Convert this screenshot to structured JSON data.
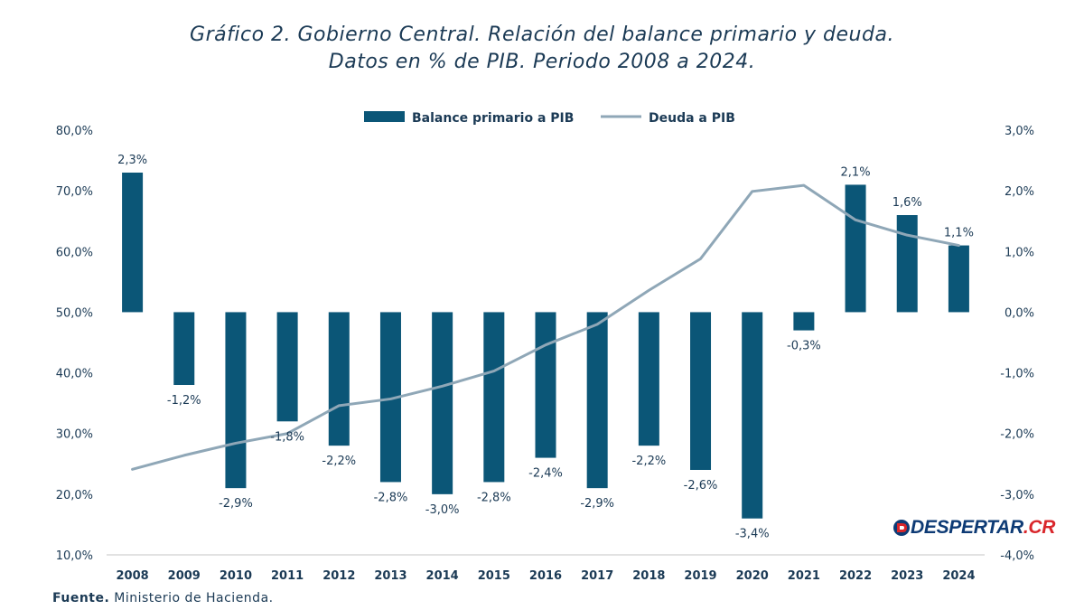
{
  "title_line1": "Gráfico 2. Gobierno Central. Relación del balance primario y deuda.",
  "title_line2": "Datos en % de PIB. Periodo 2008 a 2024.",
  "source_label": "Fuente.",
  "source_text": "Ministerio de Hacienda.",
  "logo": {
    "main": "DESPERTAR",
    "suffix": ".CR",
    "icon": "despertar-logo-icon"
  },
  "colors": {
    "bar": "#0b5677",
    "line": "#8fa7b7",
    "text": "#1b3a55",
    "axis_line": "#d9d9d9"
  },
  "chart_data": {
    "type": "bar",
    "categories": [
      "2008",
      "2009",
      "2010",
      "2011",
      "2012",
      "2013",
      "2014",
      "2015",
      "2016",
      "2017",
      "2018",
      "2019",
      "2020",
      "2021",
      "2022",
      "2023",
      "2024"
    ],
    "series": [
      {
        "name": "Balance primario a PIB",
        "type": "bar",
        "axis": "right",
        "values": [
          2.3,
          -1.2,
          -2.9,
          -1.8,
          -2.2,
          -2.8,
          -3.0,
          -2.8,
          -2.4,
          -2.9,
          -2.2,
          -2.6,
          -3.4,
          -0.3,
          2.1,
          1.6,
          1.1
        ],
        "labels": [
          "2,3%",
          "-1,2%",
          "-2,9%",
          "-1,8%",
          "-2,2%",
          "-2,8%",
          "-3,0%",
          "-2,8%",
          "-2,4%",
          "-2,9%",
          "-2,2%",
          "-2,6%",
          "-3,4%",
          "-0,3%",
          "2,1%",
          "1,6%",
          "1,1%"
        ]
      },
      {
        "name": "Deuda a PIB",
        "type": "line",
        "axis": "left",
        "values": [
          24.1,
          26.4,
          28.4,
          30.0,
          34.6,
          35.7,
          37.8,
          40.3,
          44.6,
          48.0,
          53.6,
          58.8,
          69.9,
          70.9,
          65.2,
          62.7,
          61.0
        ]
      }
    ],
    "y_left": {
      "range": [
        10,
        80
      ],
      "ticks": [
        "10,0%",
        "20,0%",
        "30,0%",
        "40,0%",
        "50,0%",
        "60,0%",
        "70,0%",
        "80,0%"
      ],
      "tick_values": [
        10,
        20,
        30,
        40,
        50,
        60,
        70,
        80
      ]
    },
    "y_right": {
      "range": [
        -4,
        3
      ],
      "ticks": [
        "-4,0%",
        "-3,0%",
        "-2,0%",
        "-1,0%",
        "0,0%",
        "1,0%",
        "2,0%",
        "3,0%"
      ],
      "tick_values": [
        -4,
        -3,
        -2,
        -1,
        0,
        1,
        2,
        3
      ]
    },
    "legend_position": "top-center",
    "grid": false
  }
}
